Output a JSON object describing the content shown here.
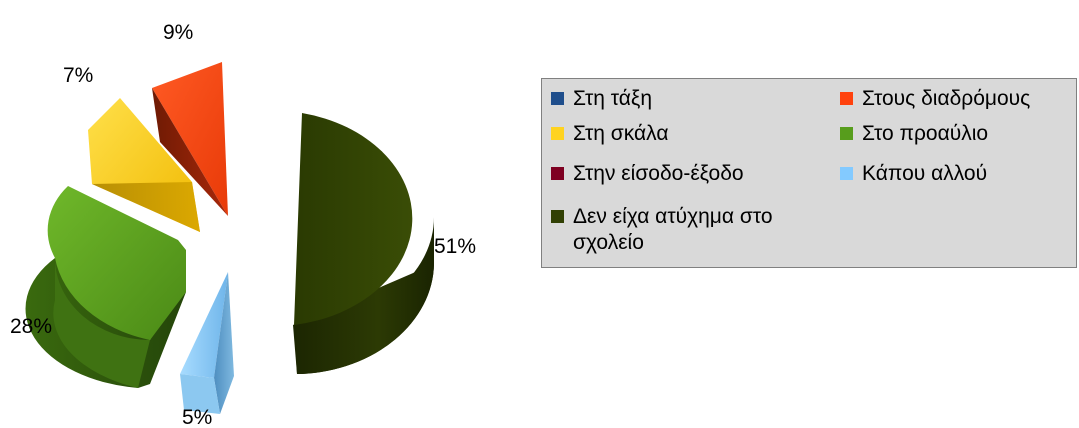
{
  "chart_data": {
    "type": "pie",
    "style": "3d-exploded",
    "title": "",
    "series": [
      {
        "name": "",
        "slices": [
          {
            "label": "Στη τάξη",
            "value": 0,
            "percent_label": "",
            "color": "#1f4e8c"
          },
          {
            "label": "Στους διαδρόμους",
            "value": 9,
            "percent_label": "9%",
            "color": "#ff420e"
          },
          {
            "label": "Στη σκάλα",
            "value": 7,
            "percent_label": "7%",
            "color": "#ffd320"
          },
          {
            "label": "Στο προαύλιο",
            "value": 28,
            "percent_label": "28%",
            "color": "#579d1c"
          },
          {
            "label": "Στην είσοδο-έξοδο",
            "value": 0,
            "percent_label": "",
            "color": "#7e0021"
          },
          {
            "label": "Κάπου αλλού",
            "value": 5,
            "percent_label": "5%",
            "color": "#83caff"
          },
          {
            "label": "Δεν είχα ατύχημα στο σχολείο",
            "value": 51,
            "percent_label": "51%",
            "color": "#314004"
          }
        ]
      }
    ],
    "legend": {
      "placement": "right",
      "columns": 2,
      "items": [
        {
          "label": "Στη τάξη",
          "color": "#1f4e8c"
        },
        {
          "label": "Στους διαδρόμους",
          "color": "#ff420e"
        },
        {
          "label": "Στη σκάλα",
          "color": "#ffd320"
        },
        {
          "label": "Στο προαύλιο",
          "color": "#579d1c"
        },
        {
          "label": "Στην είσοδο-έξοδο",
          "color": "#7e0021"
        },
        {
          "label": "Κάπου αλλού",
          "color": "#83caff"
        },
        {
          "label": "Δεν είχα ατύχημα στο",
          "label_line2": "σχολείο",
          "color": "#314004"
        }
      ]
    }
  }
}
